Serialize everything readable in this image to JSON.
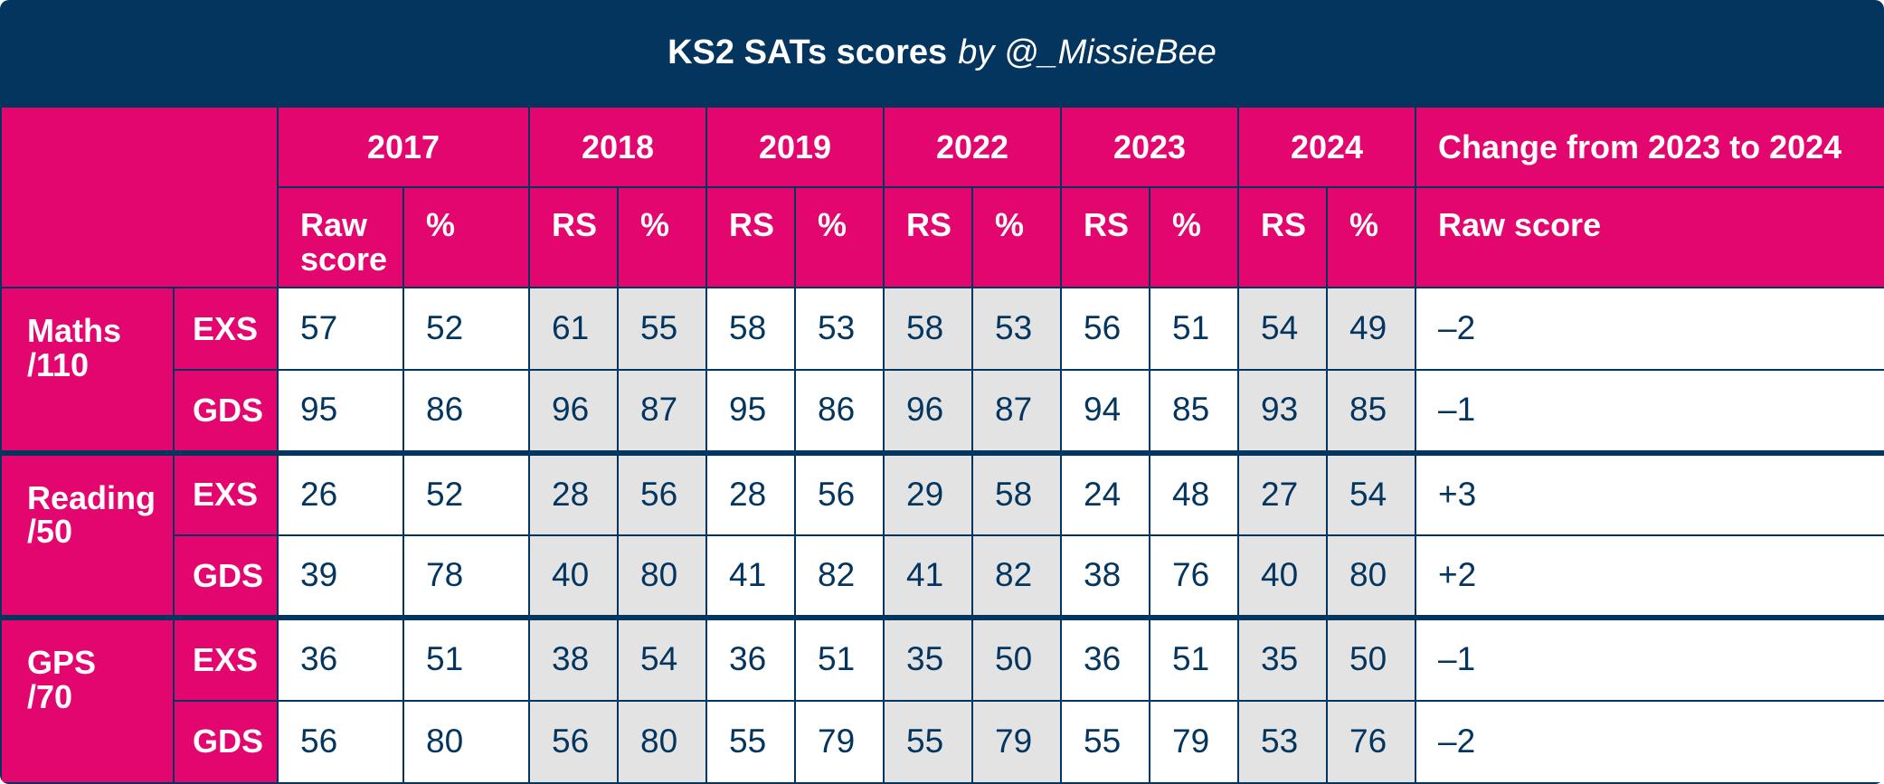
{
  "title": {
    "main": "KS2 SATs scores",
    "byline": "by @_MissieBee"
  },
  "years": [
    "2017",
    "2018",
    "2019",
    "2022",
    "2023",
    "2024"
  ],
  "change_header": "Change from 2023 to 2024",
  "sub_headers": [
    "Raw score",
    "%",
    "RS",
    "%",
    "RS",
    "%",
    "RS",
    "%",
    "RS",
    "%",
    "RS",
    "%",
    "Raw score"
  ],
  "subjects": [
    {
      "name": "Maths",
      "max": "/110",
      "rows": [
        {
          "band": "EXS",
          "values": [
            "57",
            "52",
            "61",
            "55",
            "58",
            "53",
            "58",
            "53",
            "56",
            "51",
            "54",
            "49"
          ],
          "change": "–2"
        },
        {
          "band": "GDS",
          "values": [
            "95",
            "86",
            "96",
            "87",
            "95",
            "86",
            "96",
            "87",
            "94",
            "85",
            "93",
            "85"
          ],
          "change": "–1"
        }
      ]
    },
    {
      "name": "Reading",
      "max": "/50",
      "rows": [
        {
          "band": "EXS",
          "values": [
            "26",
            "52",
            "28",
            "56",
            "28",
            "56",
            "29",
            "58",
            "24",
            "48",
            "27",
            "54"
          ],
          "change": "+3"
        },
        {
          "band": "GDS",
          "values": [
            "39",
            "78",
            "40",
            "80",
            "41",
            "82",
            "41",
            "82",
            "38",
            "76",
            "40",
            "80"
          ],
          "change": "+2"
        }
      ]
    },
    {
      "name": "GPS",
      "max": "/70",
      "rows": [
        {
          "band": "EXS",
          "values": [
            "36",
            "51",
            "38",
            "54",
            "36",
            "51",
            "35",
            "50",
            "36",
            "51",
            "35",
            "50"
          ],
          "change": "–1"
        },
        {
          "band": "GDS",
          "values": [
            "56",
            "80",
            "56",
            "80",
            "55",
            "79",
            "55",
            "79",
            "55",
            "79",
            "53",
            "76"
          ],
          "change": "–2"
        }
      ]
    }
  ],
  "colors": {
    "navy": "#03355f",
    "pink": "#e3066e",
    "shade": "#e3e3e3"
  }
}
